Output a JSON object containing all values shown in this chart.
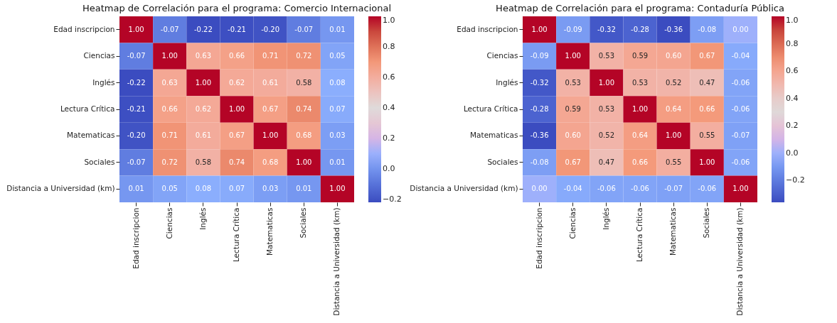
{
  "chart_data": [
    {
      "type": "heatmap",
      "title": "Heatmap de Correlación para el programa: Comercio Internacional",
      "categories": [
        "Edad inscripcion",
        "Ciencias",
        "Inglés",
        "Lectura Crítica",
        "Matematicas",
        "Sociales",
        "Distancia a Universidad (km)"
      ],
      "y_categories": [
        "Edad inscripcion",
        "Ciencias",
        "Inglés",
        "Lectura Crítica",
        "Matematicas",
        "Sociales",
        "Distancia a Universidad (km)"
      ],
      "cells": [
        [
          1.0,
          -0.07,
          -0.22,
          -0.21,
          -0.2,
          -0.07,
          0.01
        ],
        [
          -0.07,
          1.0,
          0.63,
          0.66,
          0.71,
          0.72,
          0.05
        ],
        [
          -0.22,
          0.63,
          1.0,
          0.62,
          0.61,
          0.58,
          0.08
        ],
        [
          -0.21,
          0.66,
          0.62,
          1.0,
          0.67,
          0.74,
          0.07
        ],
        [
          -0.2,
          0.71,
          0.61,
          0.67,
          1.0,
          0.68,
          0.03
        ],
        [
          -0.07,
          0.72,
          0.58,
          0.74,
          0.68,
          1.0,
          0.01
        ],
        [
          0.01,
          0.05,
          0.08,
          0.07,
          0.03,
          0.01,
          1.0
        ]
      ],
      "cell_labels": [
        [
          "1.00",
          "-0.07",
          "-0.22",
          "-0.21",
          "-0.20",
          "-0.07",
          "0.01"
        ],
        [
          "-0.07",
          "1.00",
          "0.63",
          "0.66",
          "0.71",
          "0.72",
          "0.05"
        ],
        [
          "-0.22",
          "0.63",
          "1.00",
          "0.62",
          "0.61",
          "0.58",
          "0.08"
        ],
        [
          "-0.21",
          "0.66",
          "0.62",
          "1.00",
          "0.67",
          "0.74",
          "0.07"
        ],
        [
          "-0.20",
          "0.71",
          "0.61",
          "0.67",
          "1.00",
          "0.68",
          "0.03"
        ],
        [
          "-0.07",
          "0.72",
          "0.58",
          "0.74",
          "0.68",
          "1.00",
          "0.01"
        ],
        [
          "0.01",
          "0.05",
          "0.08",
          "0.07",
          "0.03",
          "0.01",
          "1.00"
        ]
      ],
      "clim": [
        -0.22,
        1.0
      ],
      "cticks": [
        {
          "value": -0.2,
          "label": "−0.2"
        },
        {
          "value": 0,
          "label": "0.0"
        },
        0.2,
        0.4,
        0.6,
        0.8,
        {
          "value": 1,
          "label": "1.0"
        }
      ]
    },
    {
      "type": "heatmap",
      "title": "Heatmap de Correlación para el programa: Contaduría Pública",
      "categories": [
        "Edad inscripcion",
        "Ciencias",
        "Inglés",
        "Lectura Crítica",
        "Matematicas",
        "Sociales",
        "Distancia a Universidad (km)"
      ],
      "y_categories": [
        "Edad inscripcion",
        "Ciencias",
        "Inglés",
        "Lectura Crítica",
        "Matematicas",
        "Sociales",
        "Distancia a Universidad (km)"
      ],
      "cells": [
        [
          1.0,
          -0.09,
          -0.32,
          -0.28,
          -0.36,
          -0.08,
          0.0
        ],
        [
          -0.09,
          1.0,
          0.53,
          0.59,
          0.6,
          0.67,
          -0.04
        ],
        [
          -0.32,
          0.53,
          1.0,
          0.53,
          0.52,
          0.47,
          -0.06
        ],
        [
          -0.28,
          0.59,
          0.53,
          1.0,
          0.64,
          0.66,
          -0.06
        ],
        [
          -0.36,
          0.6,
          0.52,
          0.64,
          1.0,
          0.55,
          -0.07
        ],
        [
          -0.08,
          0.67,
          0.47,
          0.66,
          0.55,
          1.0,
          -0.06
        ],
        [
          0.0,
          -0.04,
          -0.06,
          -0.06,
          -0.07,
          -0.06,
          1.0
        ]
      ],
      "cell_labels": [
        [
          "1.00",
          "-0.09",
          "-0.32",
          "-0.28",
          "-0.36",
          "-0.08",
          "0.00"
        ],
        [
          "-0.09",
          "1.00",
          "0.53",
          "0.59",
          "0.60",
          "0.67",
          "-0.04"
        ],
        [
          "-0.32",
          "0.53",
          "1.00",
          "0.53",
          "0.52",
          "0.47",
          "-0.06"
        ],
        [
          "-0.28",
          "0.59",
          "0.53",
          "1.00",
          "0.64",
          "0.66",
          "-0.06"
        ],
        [
          "-0.36",
          "0.60",
          "0.52",
          "0.64",
          "1.00",
          "0.55",
          "-0.07"
        ],
        [
          "-0.08",
          "0.67",
          "0.47",
          "0.66",
          "0.55",
          "1.00",
          "-0.06"
        ],
        [
          "0.00",
          "-0.04",
          "-0.06",
          "-0.06",
          "-0.07",
          "-0.06",
          "1.00"
        ]
      ],
      "clim": [
        -0.36,
        1.0
      ],
      "cticks": [
        {
          "value": -0.2,
          "label": "−0.2"
        },
        {
          "value": 0,
          "label": "0.0"
        },
        0.2,
        0.4,
        0.6,
        0.8,
        {
          "value": 1,
          "label": "1.0"
        }
      ]
    }
  ]
}
